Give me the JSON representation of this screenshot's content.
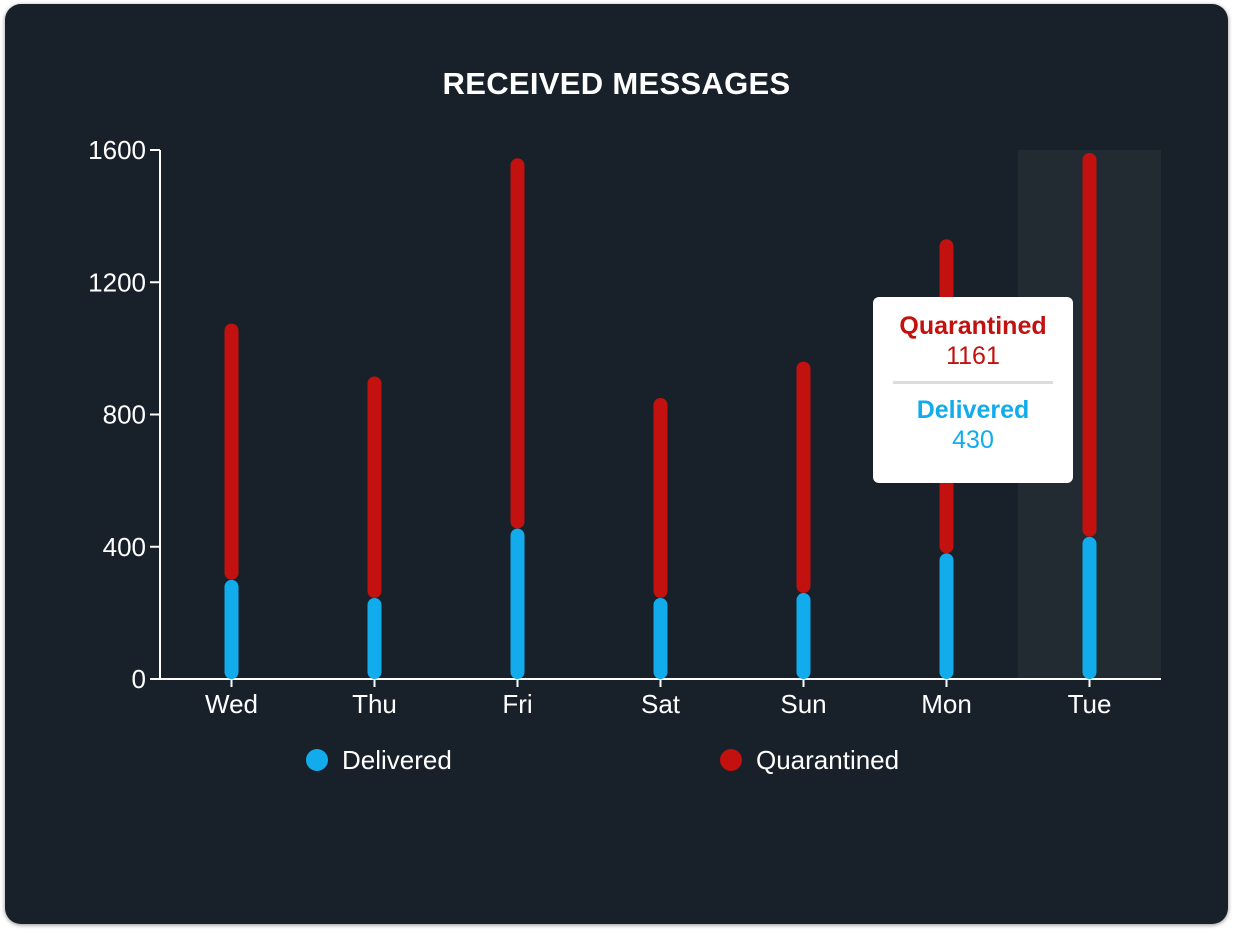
{
  "chart_data": {
    "type": "bar",
    "title": "RECEIVED MESSAGES",
    "categories": [
      "Wed",
      "Thu",
      "Fri",
      "Sat",
      "Sun",
      "Mon",
      "Tue"
    ],
    "series": [
      {
        "name": "Delivered",
        "values": [
          300,
          245,
          455,
          245,
          260,
          380,
          430
        ],
        "color": "#12aced"
      },
      {
        "name": "Quarantined",
        "values": [
          775,
          670,
          1120,
          605,
          700,
          950,
          1161
        ],
        "color": "#c2110f"
      }
    ],
    "stacked": true,
    "ylim": [
      0,
      1600
    ],
    "yticks": [
      0,
      400,
      800,
      1200,
      1600
    ],
    "legend_position": "bottom",
    "highlighted_category": "Tue",
    "tooltip": {
      "items": [
        {
          "name": "Quarantined",
          "value": "1161",
          "color": "#c2110f"
        },
        {
          "name": "Delivered",
          "value": "430",
          "color": "#12aced"
        }
      ]
    }
  },
  "colors": {
    "background": "#18212a",
    "highlight_band": "#212b31",
    "axis": "#ffffff"
  }
}
